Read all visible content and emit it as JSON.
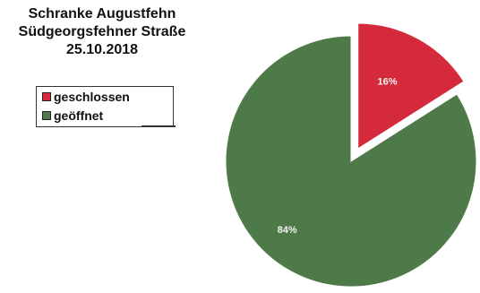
{
  "title_lines": [
    "Schranke Augustfehn",
    "Südgeorgsfehner Straße",
    "25.10.2018"
  ],
  "chart_data": {
    "type": "pie",
    "title": "Schranke Augustfehn Südgeorgsfehner Straße 25.10.2018",
    "legend": [
      "geschlossen",
      "geöffnet"
    ],
    "legend_position": "left",
    "slices": [
      {
        "label": "geschlossen",
        "value": 16,
        "display": "16%",
        "color": "#d42a3c",
        "exploded": true
      },
      {
        "label": "geöffnet",
        "value": 84,
        "display": "84%",
        "color": "#4e7a4a",
        "exploded": false
      }
    ]
  }
}
